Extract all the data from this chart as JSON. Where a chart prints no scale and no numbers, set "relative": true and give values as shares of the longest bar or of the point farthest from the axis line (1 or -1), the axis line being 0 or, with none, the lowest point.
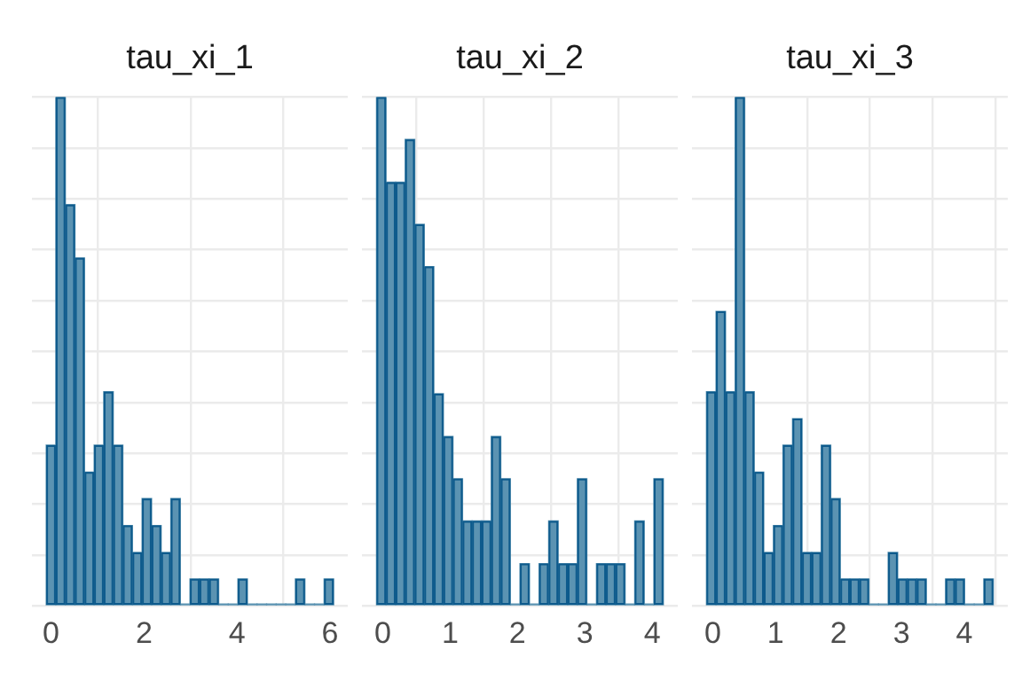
{
  "chart_data": [
    {
      "type": "bar",
      "title": "tau_xi_1",
      "relative": true,
      "color": "#5b93b2",
      "grid": true,
      "xlim": [
        -0.41,
        6.38
      ],
      "xticks": [
        0,
        2,
        4,
        6
      ],
      "x": [
        0,
        0.206,
        0.412,
        0.618,
        0.824,
        1.03,
        1.236,
        1.442,
        1.648,
        1.854,
        2.06,
        2.266,
        2.472,
        2.678,
        2.884,
        3.09,
        3.296,
        3.502,
        3.708,
        3.914,
        4.12,
        4.326,
        4.532,
        4.738,
        4.944,
        5.15,
        5.356,
        5.562,
        5.768,
        5.974
      ],
      "values": [
        0.316,
        1,
        0.789,
        0.684,
        0.263,
        0.316,
        0.421,
        0.316,
        0.158,
        0.105,
        0.211,
        0.158,
        0.105,
        0.211,
        0,
        0.053,
        0.053,
        0.053,
        0,
        0,
        0.053,
        0,
        0,
        0,
        0,
        0,
        0.053,
        0,
        0,
        0.053
      ]
    },
    {
      "type": "bar",
      "title": "tau_xi_2",
      "relative": true,
      "color": "#5b93b2",
      "grid": true,
      "xlim": [
        -0.31,
        4.38
      ],
      "xticks": [
        0,
        1,
        2,
        3,
        4
      ],
      "x": [
        -0.023,
        0.119,
        0.261,
        0.403,
        0.545,
        0.687,
        0.829,
        0.971,
        1.113,
        1.255,
        1.397,
        1.539,
        1.681,
        1.823,
        1.965,
        2.107,
        2.249,
        2.391,
        2.533,
        2.675,
        2.817,
        2.959,
        3.101,
        3.243,
        3.385,
        3.527,
        3.669,
        3.811,
        3.953,
        4.095
      ],
      "values": [
        1,
        0.833,
        0.833,
        0.917,
        0.75,
        0.667,
        0.417,
        0.333,
        0.25,
        0.167,
        0.167,
        0.167,
        0.333,
        0.25,
        0,
        0.083,
        0,
        0.083,
        0.167,
        0.083,
        0.083,
        0.25,
        0,
        0.083,
        0.083,
        0.083,
        0,
        0.167,
        0,
        0.25
      ]
    },
    {
      "type": "bar",
      "title": "tau_xi_3",
      "relative": true,
      "color": "#5b93b2",
      "grid": true,
      "xlim": [
        -0.33,
        4.69
      ],
      "xticks": [
        0,
        1,
        2,
        3,
        4
      ],
      "x": [
        -0.024,
        0.128,
        0.28,
        0.432,
        0.584,
        0.736,
        0.888,
        1.04,
        1.192,
        1.344,
        1.496,
        1.648,
        1.8,
        1.952,
        2.104,
        2.256,
        2.408,
        2.56,
        2.712,
        2.864,
        3.016,
        3.168,
        3.32,
        3.472,
        3.624,
        3.776,
        3.928,
        4.08,
        4.232,
        4.384
      ],
      "values": [
        0.421,
        0.579,
        0.421,
        1,
        0.421,
        0.263,
        0.105,
        0.158,
        0.316,
        0.368,
        0.105,
        0.105,
        0.316,
        0.211,
        0.053,
        0.053,
        0.053,
        0,
        0,
        0.105,
        0.053,
        0.053,
        0.053,
        0,
        0,
        0.053,
        0.053,
        0,
        0,
        0.053
      ]
    }
  ]
}
